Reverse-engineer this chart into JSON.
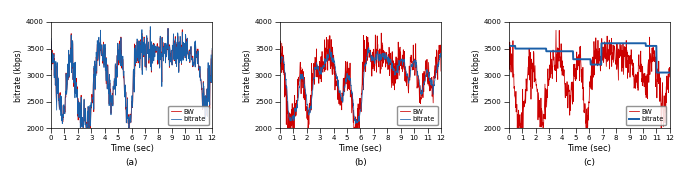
{
  "title_a": "(a)",
  "title_b": "(b)",
  "title_c": "(c)",
  "xlabel": "Time (sec)",
  "ylabel": "bitrate (kbps)",
  "xlim": [
    0,
    12
  ],
  "ylim": [
    2000,
    4000
  ],
  "yticks": [
    2000,
    2500,
    3000,
    3500,
    4000
  ],
  "xticks": [
    0,
    1,
    2,
    3,
    4,
    5,
    6,
    7,
    8,
    9,
    10,
    11,
    12
  ],
  "bw_color": "#cc0000",
  "bitrate_color": "#1a5fa8",
  "legend_bw": "BW",
  "legend_bitrate": "bitrate",
  "bw_lw": 0.55,
  "bitrate_lw_ab": 0.55,
  "bitrate_lw_c": 1.4,
  "n_points": 600,
  "figsize": [
    6.8,
    1.69
  ],
  "dpi": 100,
  "step_times_c": [
    0,
    0.5,
    2.8,
    4.8,
    6.1,
    6.9,
    10.2,
    11.0,
    12.0
  ],
  "step_vals_c": [
    3550,
    3500,
    3450,
    3300,
    3200,
    3600,
    3550,
    3050,
    3550
  ]
}
